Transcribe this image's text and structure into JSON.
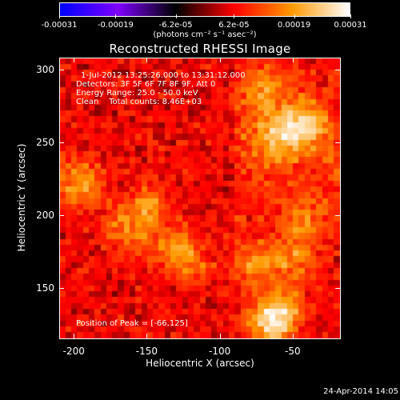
{
  "colorbar": {
    "tick_labels": [
      "-0.00031",
      "-0.00019",
      "-6.2e-05",
      "6.2e-05",
      "0.00019",
      "0.00031"
    ],
    "tick_values": [
      -0.00031,
      -0.00019,
      -6.2e-05,
      6.2e-05,
      0.00019,
      0.00031
    ],
    "range": [
      -0.00031,
      0.00031
    ],
    "units": "(photons cm⁻² s⁻¹ asec⁻²)",
    "colormap": [
      "#0000ff",
      "#7f00ff",
      "#000000",
      "#ff0000",
      "#ff9900",
      "#ffffff"
    ]
  },
  "chart_data": {
    "type": "heatmap",
    "title": "Reconstructed RHESSI Image",
    "xlabel": "Heliocentric X (arcsec)",
    "ylabel": "Heliocentric Y (arcsec)",
    "xlim": [
      -210,
      -17
    ],
    "ylim": [
      115,
      308
    ],
    "x_ticks": [
      -200,
      -150,
      -100,
      -50
    ],
    "y_ticks": [
      150,
      200,
      250,
      300
    ],
    "peak": {
      "x": -66,
      "y": 125
    },
    "bright_regions": [
      {
        "x": -60,
        "y": 255,
        "level": 0.85
      },
      {
        "x": -40,
        "y": 262,
        "level": 0.9
      },
      {
        "x": -70,
        "y": 285,
        "level": 0.6
      },
      {
        "x": -196,
        "y": 222,
        "level": 0.8
      },
      {
        "x": -150,
        "y": 205,
        "level": 0.7
      },
      {
        "x": -165,
        "y": 188,
        "level": 0.55
      },
      {
        "x": -130,
        "y": 178,
        "level": 0.6
      },
      {
        "x": -120,
        "y": 165,
        "level": 0.45
      },
      {
        "x": -75,
        "y": 165,
        "level": 0.7
      },
      {
        "x": -50,
        "y": 170,
        "level": 0.6
      },
      {
        "x": -40,
        "y": 195,
        "level": 0.5
      },
      {
        "x": -55,
        "y": 135,
        "level": 0.75
      },
      {
        "x": -66,
        "y": 125,
        "level": 1.0
      }
    ]
  },
  "info": {
    "time_range": "1-Jul-2012 13:25:26.000 to 13:31:12.000",
    "detectors": "Detectors: 3F 5F 6F 7F 8F 9F, Att 0",
    "energy": "Energy Range: 25.0 - 50.0 keV",
    "clean": "Clean    Total counts: 8.46E+03",
    "peak_label": "Position of Peak = [-66,125]"
  },
  "timestamp": "24-Apr-2014 14:05"
}
